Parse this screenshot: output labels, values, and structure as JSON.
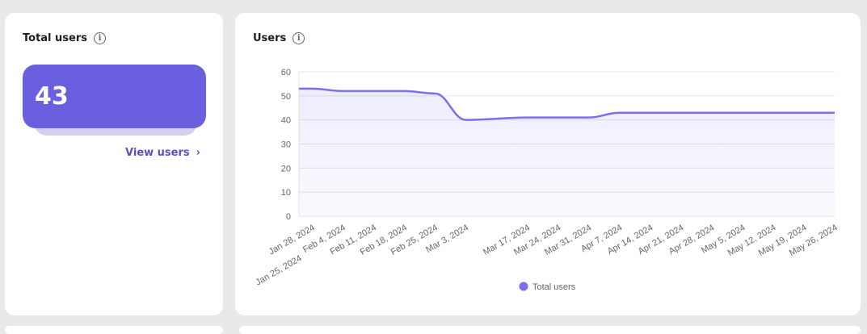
{
  "total_users_card": {
    "title": "Total users",
    "value": "43",
    "link": "View users",
    "info_icon": "info-icon"
  },
  "users_card": {
    "title": "Users",
    "info_icon": "info-icon"
  },
  "chart_data": {
    "type": "area",
    "title": "Users",
    "ylim": [
      0,
      60
    ],
    "yticks": [
      0,
      10,
      20,
      30,
      40,
      50,
      60
    ],
    "grid": true,
    "legend": "bottom",
    "color": "#7b6ff0",
    "xticks": [
      "Jan 25, 2024",
      "Jan 28, 2024",
      "Feb 4, 2024",
      "Feb 11, 2024",
      "Feb 18, 2024",
      "Feb 25, 2024",
      "Mar 3, 2024",
      "Mar 17, 2024",
      "Mar 24, 2024",
      "Mar 31, 2024",
      "Apr 7, 2024",
      "Apr 14, 2024",
      "Apr 21, 2024",
      "Apr 28, 2024",
      "May 5, 2024",
      "May 12, 2024",
      "May 19, 2024",
      "May 26, 2024"
    ],
    "series": [
      {
        "name": "Total users",
        "x": [
          "2024-01-25",
          "2024-01-28",
          "2024-02-04",
          "2024-02-11",
          "2024-02-18",
          "2024-02-25",
          "2024-03-03",
          "2024-03-17",
          "2024-03-24",
          "2024-03-31",
          "2024-04-07",
          "2024-04-14",
          "2024-04-21",
          "2024-04-28",
          "2024-05-05",
          "2024-05-12",
          "2024-05-19",
          "2024-05-26"
        ],
        "values": [
          53,
          53,
          52,
          52,
          52,
          51,
          40,
          41,
          41,
          41,
          43,
          43,
          43,
          43,
          43,
          43,
          43,
          43
        ]
      }
    ]
  }
}
